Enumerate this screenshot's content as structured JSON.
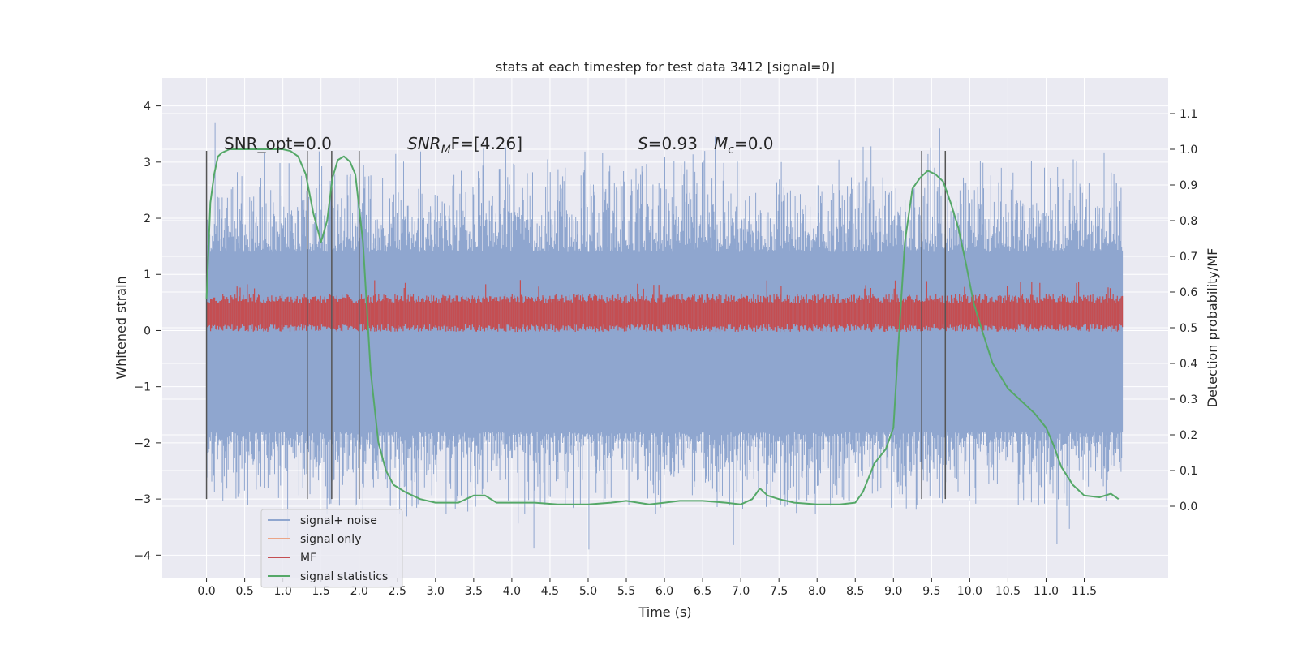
{
  "chart_data": {
    "type": "line",
    "title": "stats at each timestep for test data 3412 [signal=0]",
    "xlabel": "Time (s)",
    "ylabel": "Whitened strain",
    "y2label": "Detection probability/MF",
    "xlim": [
      -0.58,
      12.6
    ],
    "ylim": [
      -4.4,
      4.5
    ],
    "y2lim": [
      -0.2,
      1.2
    ],
    "xticks": [
      "0.0",
      "0.5",
      "1.0",
      "1.5",
      "2.0",
      "2.5",
      "3.0",
      "3.5",
      "4.0",
      "4.5",
      "5.0",
      "5.5",
      "6.0",
      "6.5",
      "7.0",
      "7.5",
      "8.0",
      "8.5",
      "9.0",
      "9.5",
      "10.0",
      "10.5",
      "11.0",
      "11.5"
    ],
    "yticks": [
      "−4",
      "−3",
      "−2",
      "−1",
      "0",
      "1",
      "2",
      "3",
      "4"
    ],
    "y2ticks": [
      "0.0",
      "0.1",
      "0.2",
      "0.3",
      "0.4",
      "0.5",
      "0.6",
      "0.7",
      "0.8",
      "0.9",
      "1.0",
      "1.1"
    ],
    "background": "#eaeaf2",
    "grid": true,
    "legend_position": "lower-left",
    "annotations": {
      "snr_opt": "SNR_opt=0.0",
      "snr_mf_prefix": "SNR",
      "snr_mf_sub": "M",
      "snr_mf_suffix": "F=[4.26]",
      "s_var": "S",
      "s_value": "=0.93",
      "mc_var": "M",
      "mc_sub": "c",
      "mc_value": "=0.0"
    },
    "vertical_lines": [
      0.0,
      1.32,
      1.64,
      2.0,
      9.37,
      9.68
    ],
    "vertical_line_range": [
      -3.0,
      3.2
    ],
    "series": [
      {
        "name": "signal+ noise",
        "color": "#8fa6cf",
        "noise_band": {
          "core": [
            -1.8,
            1.4
          ],
          "peak_max": 4.1,
          "peak_min": -3.9,
          "t_range": [
            0.0,
            12.0
          ]
        }
      },
      {
        "name": "signal only",
        "color": "#eba587"
      },
      {
        "name": "MF",
        "color": "#c44e52",
        "band": {
          "center": 0.3,
          "half_width": 0.27,
          "t_range": [
            0.0,
            12.0
          ]
        }
      },
      {
        "name": "signal statistics",
        "color": "#55a868",
        "axis": "right",
        "x": [
          0.0,
          0.05,
          0.1,
          0.15,
          0.2,
          0.3,
          0.5,
          0.8,
          1.0,
          1.1,
          1.2,
          1.3,
          1.4,
          1.5,
          1.58,
          1.65,
          1.72,
          1.8,
          1.88,
          1.95,
          2.05,
          2.15,
          2.25,
          2.35,
          2.45,
          2.6,
          2.8,
          3.0,
          3.3,
          3.5,
          3.65,
          3.8,
          4.0,
          4.3,
          4.6,
          5.0,
          5.3,
          5.5,
          5.8,
          6.0,
          6.2,
          6.5,
          6.8,
          7.0,
          7.15,
          7.25,
          7.35,
          7.5,
          7.7,
          8.0,
          8.3,
          8.5,
          8.6,
          8.75,
          8.9,
          9.0,
          9.05,
          9.15,
          9.25,
          9.35,
          9.45,
          9.55,
          9.65,
          9.75,
          9.85,
          9.95,
          10.05,
          10.15,
          10.3,
          10.5,
          10.7,
          10.85,
          11.0,
          11.1,
          11.2,
          11.35,
          11.5,
          11.7,
          11.85,
          11.95
        ],
        "y": [
          0.58,
          0.85,
          0.93,
          0.98,
          0.99,
          1.0,
          1.0,
          1.0,
          1.0,
          0.995,
          0.98,
          0.93,
          0.82,
          0.74,
          0.8,
          0.92,
          0.97,
          0.98,
          0.965,
          0.93,
          0.74,
          0.38,
          0.18,
          0.1,
          0.06,
          0.04,
          0.02,
          0.01,
          0.01,
          0.03,
          0.03,
          0.01,
          0.01,
          0.01,
          0.005,
          0.005,
          0.01,
          0.015,
          0.005,
          0.01,
          0.015,
          0.015,
          0.01,
          0.005,
          0.02,
          0.05,
          0.03,
          0.02,
          0.01,
          0.005,
          0.005,
          0.01,
          0.04,
          0.12,
          0.16,
          0.22,
          0.4,
          0.74,
          0.89,
          0.92,
          0.94,
          0.93,
          0.91,
          0.85,
          0.78,
          0.68,
          0.57,
          0.5,
          0.4,
          0.33,
          0.29,
          0.26,
          0.22,
          0.17,
          0.11,
          0.06,
          0.03,
          0.025,
          0.035,
          0.02
        ]
      }
    ]
  }
}
